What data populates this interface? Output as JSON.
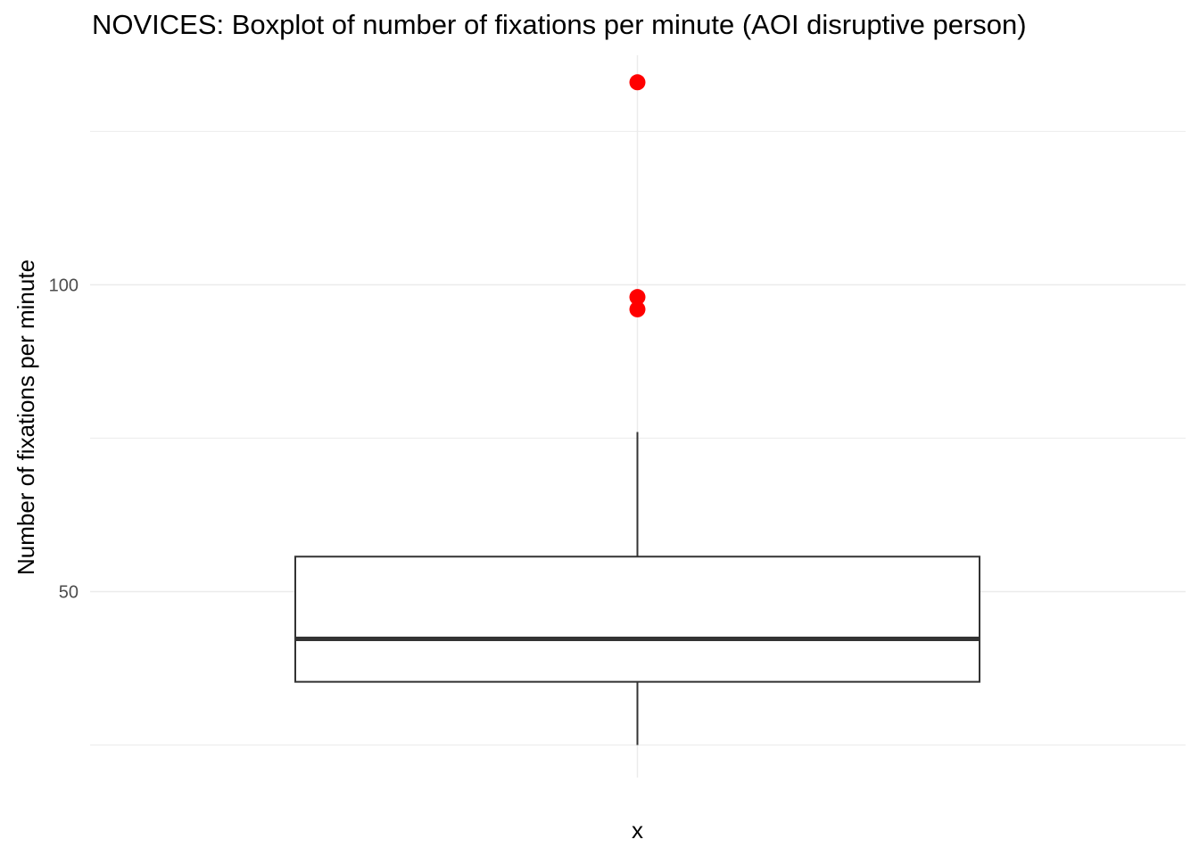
{
  "chart_data": {
    "type": "boxplot",
    "title": "NOVICES: Boxplot of number of fixations per minute (AOI disruptive person)",
    "xlabel": "x",
    "ylabel": "Number of fixations per minute",
    "ylim": [
      19.7,
      137.4
    ],
    "y_ticks": [
      100,
      50
    ],
    "y_minor_gridlines": [
      125,
      75,
      25
    ],
    "grid": true,
    "box": {
      "category": "x",
      "whisker_low": 25,
      "q1": 35.3,
      "median": 42.3,
      "q3": 55.7,
      "whisker_high": 76
    },
    "outliers": [
      133,
      98,
      96
    ],
    "colors": {
      "outlier": "#ff0000",
      "box_stroke": "#333333",
      "box_fill": "#ffffff",
      "grid": "#ebebeb"
    }
  }
}
